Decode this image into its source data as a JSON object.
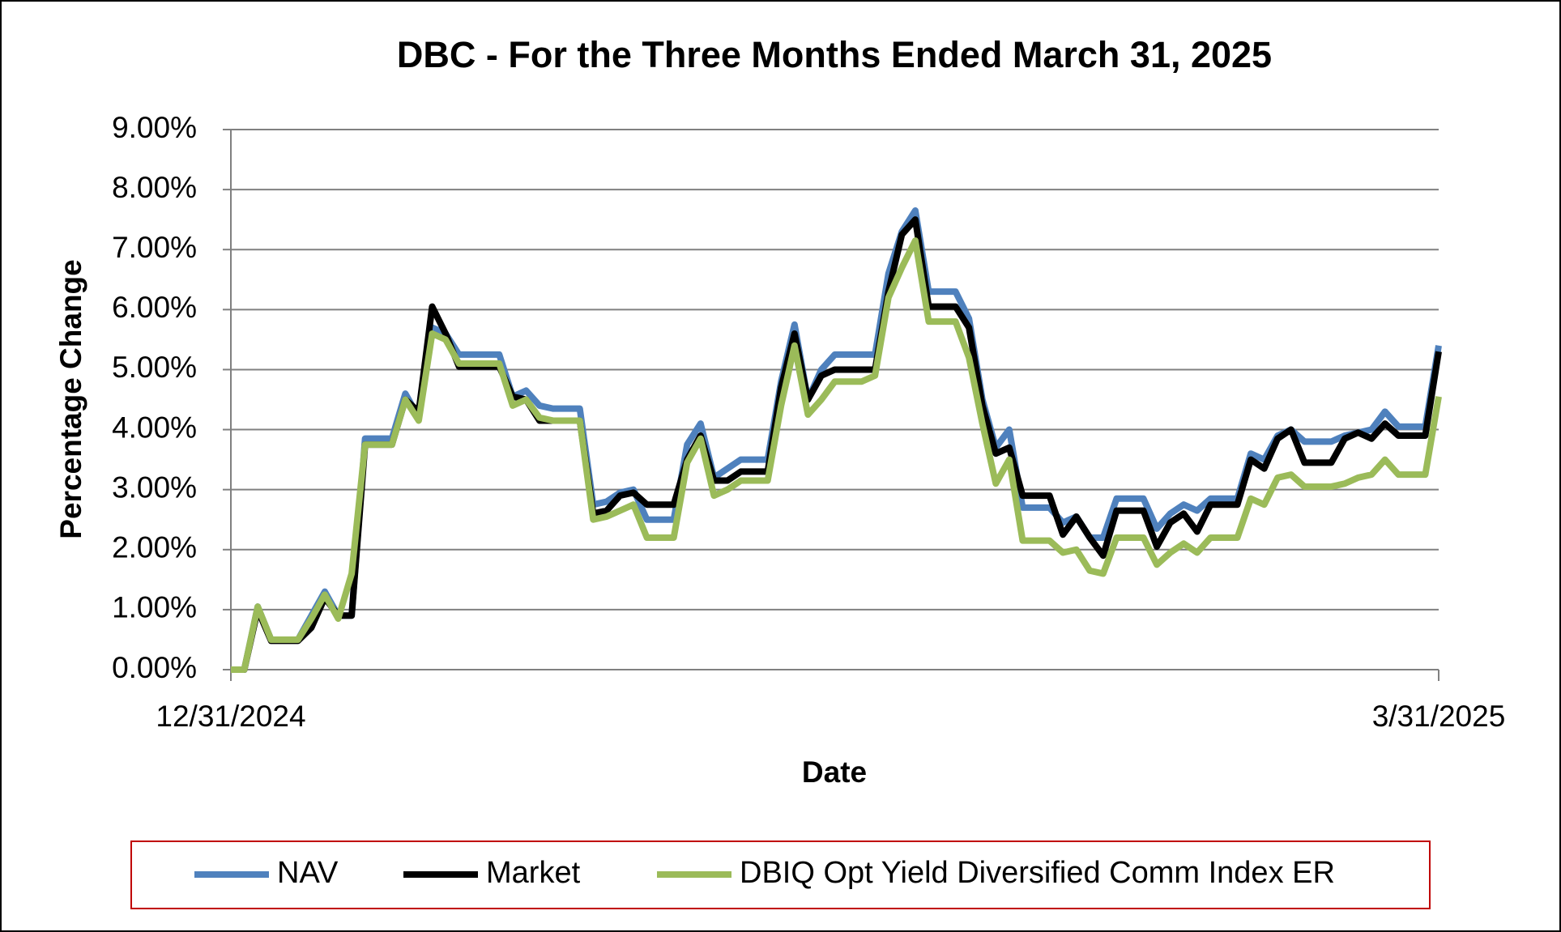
{
  "chart_data": {
    "type": "line",
    "title": "DBC - For the Three Months Ended March 31, 2025",
    "x_label": "Date",
    "y_label": "Percentage Change",
    "categories": [
      "12/31/2024",
      null,
      null,
      null,
      null,
      null,
      null,
      null,
      null,
      null,
      null,
      null,
      null,
      null,
      null,
      null,
      null,
      null,
      null,
      null,
      null,
      null,
      null,
      null,
      null,
      null,
      null,
      null,
      null,
      null,
      null,
      null,
      null,
      null,
      null,
      null,
      null,
      null,
      null,
      null,
      null,
      null,
      null,
      null,
      null,
      null,
      null,
      null,
      null,
      null,
      null,
      null,
      null,
      null,
      null,
      null,
      null,
      null,
      null,
      null,
      null,
      null,
      null,
      null,
      null,
      null,
      null,
      null,
      null,
      null,
      null,
      null,
      null,
      null,
      null,
      null,
      null,
      null,
      null,
      null,
      null,
      null,
      null,
      null,
      null,
      null,
      null,
      null,
      null,
      null,
      "3/31/2025"
    ],
    "series": [
      {
        "name": "NAV",
        "color": "#4f81bd",
        "values": [
          0,
          0,
          1.05,
          0.5,
          0.5,
          0.5,
          0.9,
          1.3,
          0.9,
          0.9,
          3.85,
          3.85,
          3.85,
          4.6,
          4.2,
          5.7,
          5.6,
          5.25,
          5.25,
          5.25,
          5.25,
          4.55,
          4.65,
          4.4,
          4.35,
          4.35,
          4.35,
          2.75,
          2.8,
          2.95,
          3.0,
          2.5,
          2.5,
          2.5,
          3.75,
          4.1,
          3.2,
          3.35,
          3.5,
          3.5,
          3.5,
          4.8,
          5.75,
          4.5,
          5.0,
          5.25,
          5.25,
          5.25,
          5.25,
          6.6,
          7.3,
          7.65,
          6.3,
          6.3,
          6.3,
          5.85,
          4.5,
          3.7,
          4.0,
          2.7,
          2.7,
          2.7,
          2.45,
          2.55,
          2.2,
          2.2,
          2.85,
          2.85,
          2.85,
          2.35,
          2.6,
          2.75,
          2.65,
          2.85,
          2.85,
          2.85,
          3.6,
          3.5,
          3.9,
          4.0,
          3.8,
          3.8,
          3.8,
          3.9,
          3.95,
          4.0,
          4.3,
          4.05,
          4.05,
          4.05,
          5.4
        ]
      },
      {
        "name": "Market",
        "color": "#000000",
        "values": [
          0,
          0,
          1.0,
          0.48,
          0.48,
          0.48,
          0.7,
          1.2,
          0.9,
          0.9,
          3.75,
          3.75,
          3.75,
          4.5,
          4.3,
          6.05,
          5.6,
          5.05,
          5.05,
          5.05,
          5.05,
          4.55,
          4.5,
          4.15,
          4.15,
          4.15,
          4.15,
          2.6,
          2.65,
          2.9,
          2.95,
          2.75,
          2.75,
          2.75,
          3.5,
          3.9,
          3.15,
          3.15,
          3.3,
          3.3,
          3.3,
          4.7,
          5.6,
          4.5,
          4.9,
          5.0,
          5.0,
          5.0,
          5.0,
          6.3,
          7.25,
          7.5,
          6.05,
          6.05,
          6.05,
          5.7,
          4.4,
          3.6,
          3.7,
          2.9,
          2.9,
          2.9,
          2.25,
          2.55,
          2.2,
          1.9,
          2.65,
          2.65,
          2.65,
          2.05,
          2.45,
          2.6,
          2.3,
          2.75,
          2.75,
          2.75,
          3.5,
          3.35,
          3.85,
          4.0,
          3.45,
          3.45,
          3.45,
          3.85,
          3.95,
          3.85,
          4.1,
          3.9,
          3.9,
          3.9,
          5.3
        ]
      },
      {
        "name": "DBIQ Opt Yield Diversified Comm Index ER",
        "color": "#9bbb59",
        "values": [
          0,
          0,
          1.05,
          0.5,
          0.5,
          0.5,
          0.85,
          1.25,
          0.85,
          1.6,
          3.75,
          3.75,
          3.75,
          4.5,
          4.15,
          5.6,
          5.5,
          5.1,
          5.1,
          5.1,
          5.1,
          4.4,
          4.5,
          4.2,
          4.15,
          4.15,
          4.15,
          2.5,
          2.55,
          2.65,
          2.75,
          2.2,
          2.2,
          2.2,
          3.45,
          3.85,
          2.9,
          3.0,
          3.15,
          3.15,
          3.15,
          4.4,
          5.4,
          4.25,
          4.5,
          4.8,
          4.8,
          4.8,
          4.9,
          6.2,
          6.7,
          7.15,
          5.8,
          5.8,
          5.8,
          5.2,
          4.1,
          3.1,
          3.5,
          2.15,
          2.15,
          2.15,
          1.95,
          2.0,
          1.65,
          1.6,
          2.2,
          2.2,
          2.2,
          1.75,
          1.95,
          2.1,
          1.95,
          2.2,
          2.2,
          2.2,
          2.85,
          2.75,
          3.2,
          3.25,
          3.05,
          3.05,
          3.05,
          3.1,
          3.2,
          3.25,
          3.5,
          3.25,
          3.25,
          3.25,
          4.55
        ]
      }
    ],
    "ylim": [
      0,
      9
    ],
    "yticks": [
      {
        "value": 0,
        "label": "0.00%"
      },
      {
        "value": 1,
        "label": "1.00%"
      },
      {
        "value": 2,
        "label": "2.00%"
      },
      {
        "value": 3,
        "label": "3.00%"
      },
      {
        "value": 4,
        "label": "4.00%"
      },
      {
        "value": 5,
        "label": "5.00%"
      },
      {
        "value": 6,
        "label": "6.00%"
      },
      {
        "value": 7,
        "label": "7.00%"
      },
      {
        "value": 8,
        "label": "8.00%"
      },
      {
        "value": 9,
        "label": "9.00%"
      }
    ],
    "grid": true,
    "legend": "bottom"
  }
}
